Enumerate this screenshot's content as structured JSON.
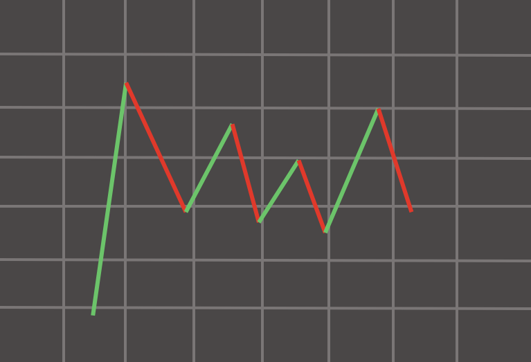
{
  "chart_data": {
    "type": "line",
    "x": [
      1.4,
      1.9,
      2.8,
      3.5,
      3.9,
      4.5,
      4.9,
      5.7,
      6.2
    ],
    "values": [
      0.9,
      5.4,
      2.9,
      4.6,
      2.7,
      3.9,
      2.5,
      4.9,
      2.9
    ],
    "xlim": [
      0,
      8
    ],
    "ylim": [
      0,
      7
    ],
    "up_color": "#6cc46a",
    "down_color": "#e0392b",
    "grid": true
  }
}
